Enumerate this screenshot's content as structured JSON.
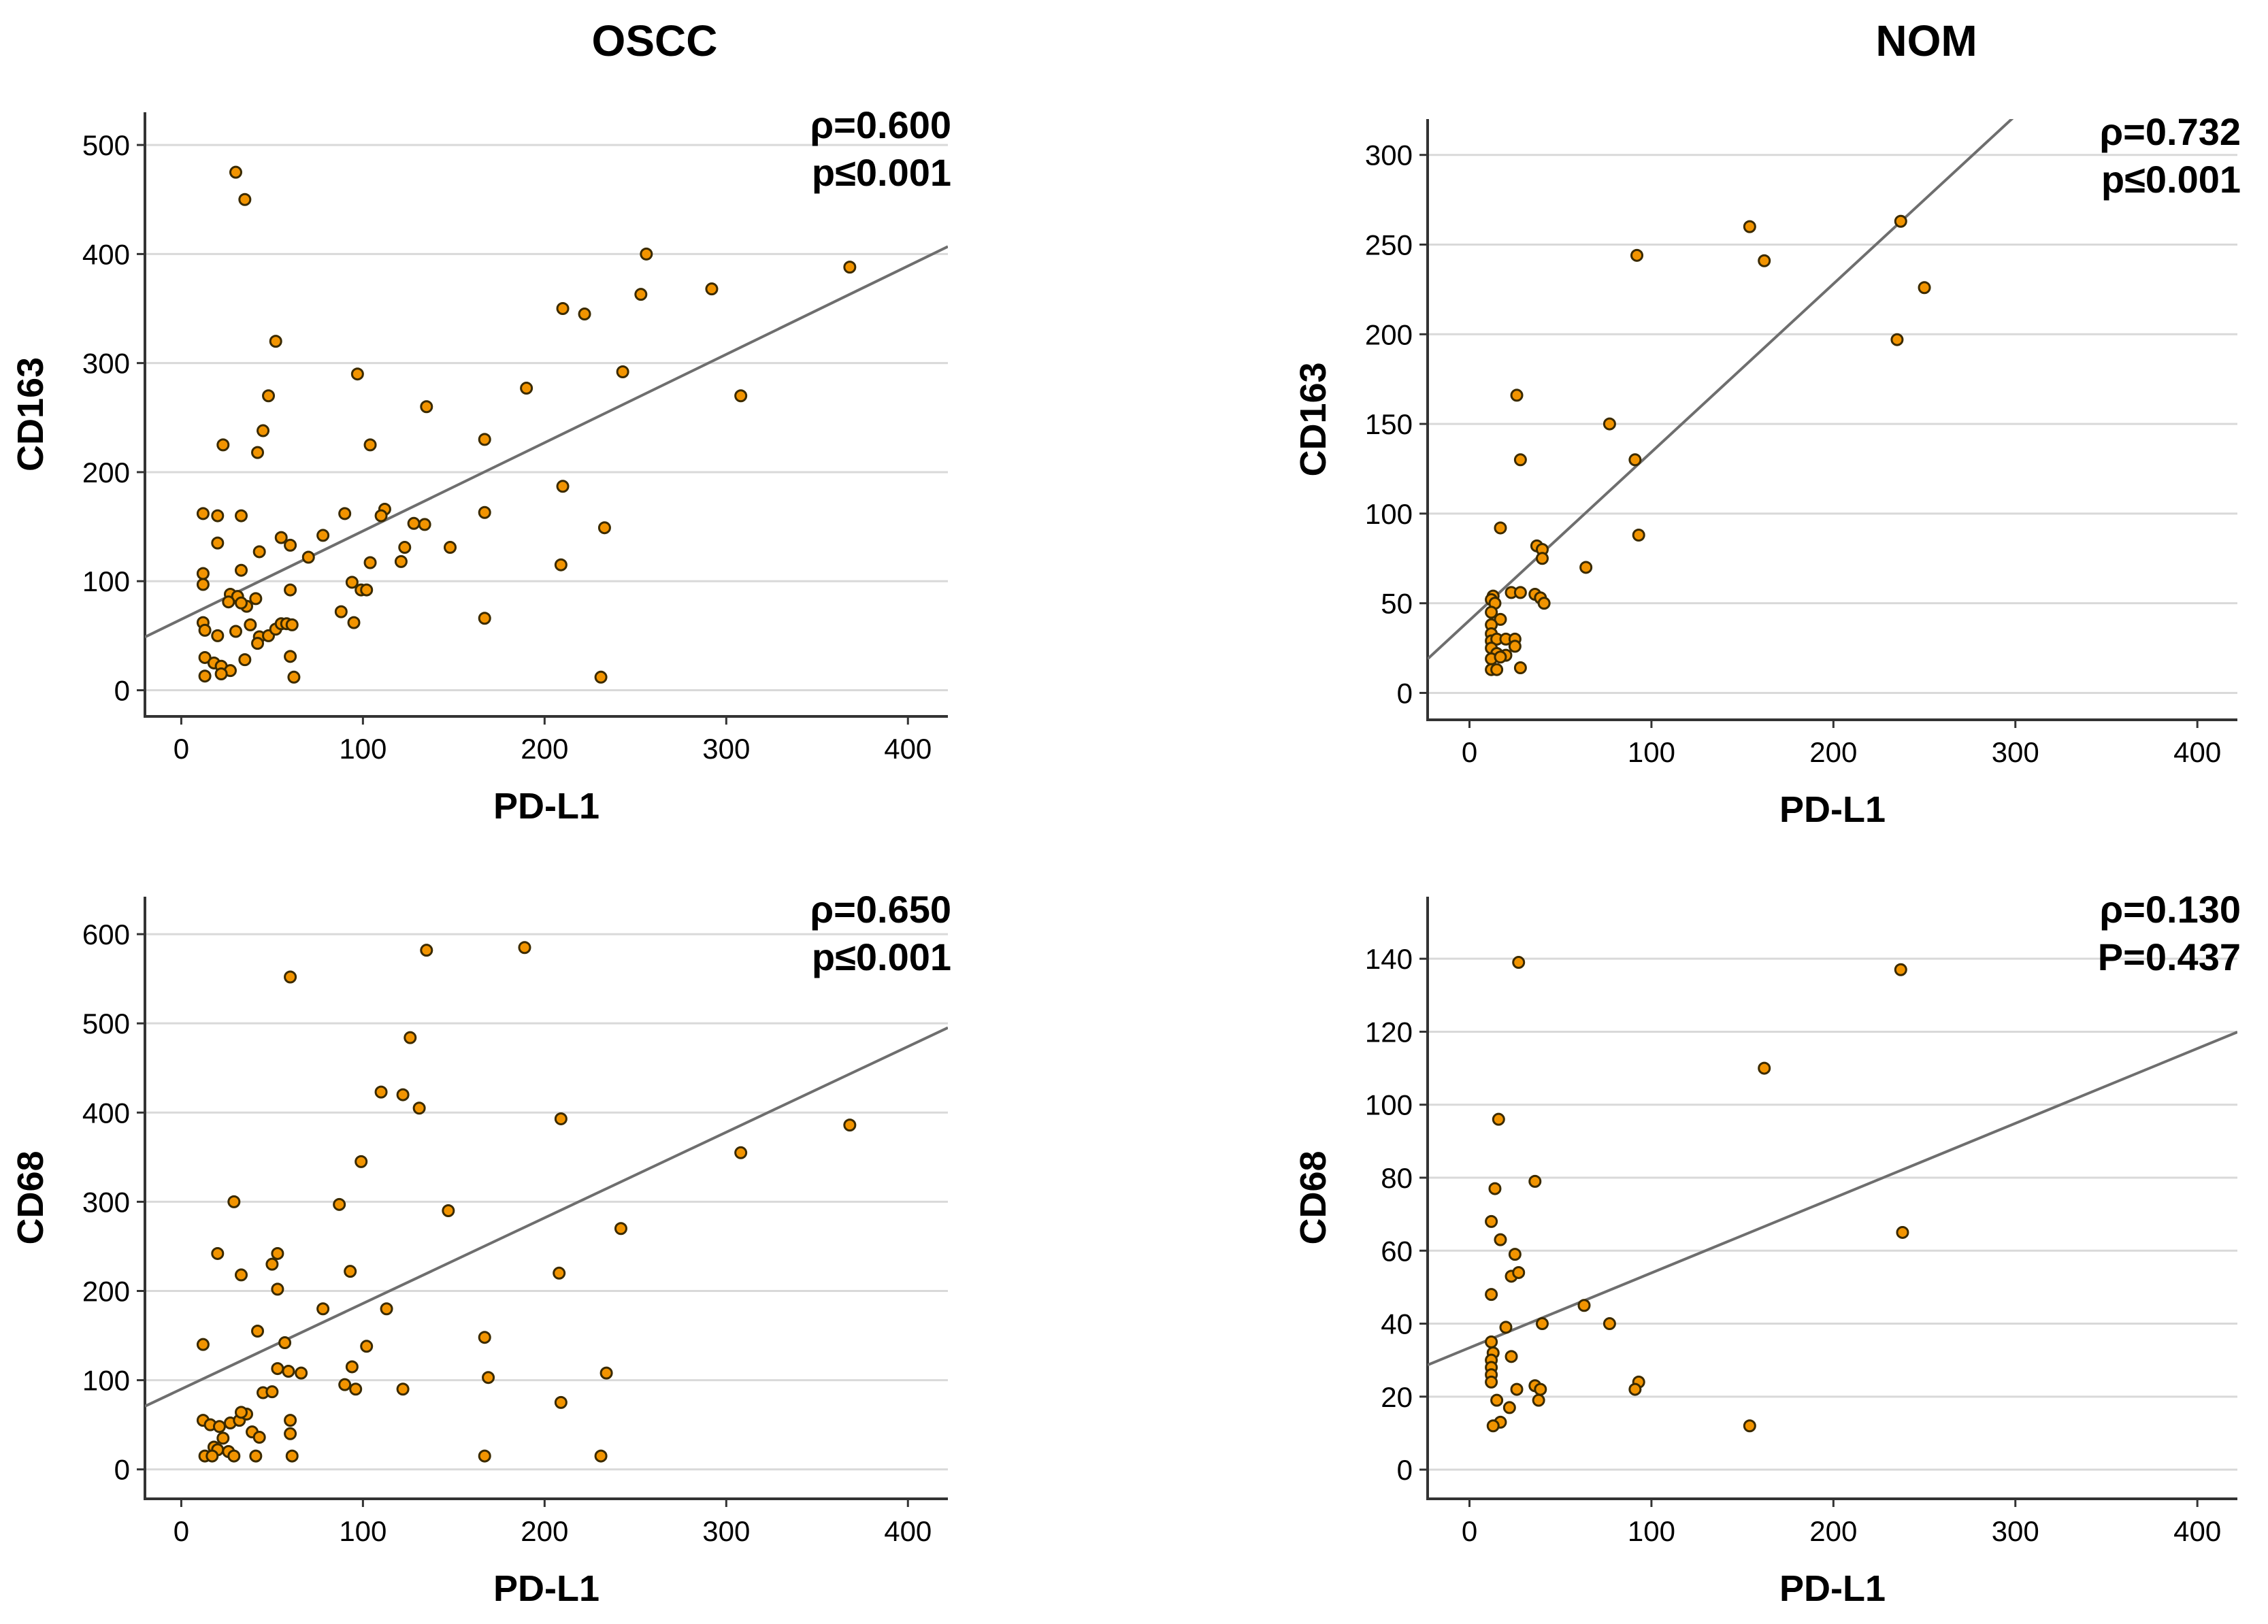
{
  "column_titles": {
    "left": "OSCC",
    "right": "NOM"
  },
  "colors": {
    "point_fill": "#f29400",
    "point_stroke": "#3a2a00",
    "fit_line": "#6e6e6e",
    "grid": "#d9d9d9"
  },
  "chart_data": [
    {
      "type": "scatter",
      "column": "OSCC",
      "xlabel": "PD-L1",
      "ylabel": "CD163",
      "xlim": [
        -20,
        422
      ],
      "ylim": [
        -24,
        530
      ],
      "xticks": [
        0,
        100,
        200,
        300,
        400
      ],
      "yticks": [
        0,
        100,
        200,
        300,
        400,
        500
      ],
      "grid": true,
      "annotation": [
        "ρ=0.600",
        "p≤0.001"
      ],
      "fit_line": {
        "intercept": 65,
        "slope": 0.81
      },
      "points": [
        [
          30,
          475
        ],
        [
          35,
          450
        ],
        [
          256,
          400
        ],
        [
          368,
          388
        ],
        [
          210,
          350
        ],
        [
          222,
          345
        ],
        [
          253,
          363
        ],
        [
          292,
          368
        ],
        [
          52,
          320
        ],
        [
          48,
          270
        ],
        [
          97,
          290
        ],
        [
          308,
          270
        ],
        [
          135,
          260
        ],
        [
          190,
          277
        ],
        [
          243,
          292
        ],
        [
          45,
          238
        ],
        [
          23,
          225
        ],
        [
          104,
          225
        ],
        [
          42,
          218
        ],
        [
          167,
          230
        ],
        [
          12,
          162
        ],
        [
          20,
          160
        ],
        [
          33,
          160
        ],
        [
          90,
          162
        ],
        [
          112,
          166
        ],
        [
          110,
          160
        ],
        [
          167,
          163
        ],
        [
          210,
          187
        ],
        [
          128,
          153
        ],
        [
          134,
          152
        ],
        [
          55,
          140
        ],
        [
          60,
          133
        ],
        [
          78,
          142
        ],
        [
          20,
          135
        ],
        [
          43,
          127
        ],
        [
          70,
          122
        ],
        [
          104,
          117
        ],
        [
          121,
          118
        ],
        [
          123,
          131
        ],
        [
          148,
          131
        ],
        [
          33,
          110
        ],
        [
          12,
          107
        ],
        [
          12,
          97
        ],
        [
          27,
          88
        ],
        [
          31,
          86
        ],
        [
          41,
          84
        ],
        [
          26,
          81
        ],
        [
          36,
          77
        ],
        [
          33,
          80
        ],
        [
          94,
          99
        ],
        [
          99,
          92
        ],
        [
          102,
          92
        ],
        [
          60,
          92
        ],
        [
          209,
          115
        ],
        [
          233,
          149
        ],
        [
          12,
          62
        ],
        [
          13,
          55
        ],
        [
          20,
          50
        ],
        [
          30,
          54
        ],
        [
          38,
          60
        ],
        [
          43,
          49
        ],
        [
          42,
          43
        ],
        [
          48,
          50
        ],
        [
          52,
          56
        ],
        [
          55,
          61
        ],
        [
          58,
          61
        ],
        [
          61,
          60
        ],
        [
          13,
          30
        ],
        [
          18,
          25
        ],
        [
          22,
          22
        ],
        [
          27,
          18
        ],
        [
          35,
          28
        ],
        [
          60,
          31
        ],
        [
          13,
          13
        ],
        [
          22,
          15
        ],
        [
          62,
          12
        ],
        [
          88,
          72
        ],
        [
          95,
          62
        ],
        [
          167,
          66
        ],
        [
          231,
          12
        ]
      ]
    },
    {
      "type": "scatter",
      "column": "NOM",
      "xlabel": "PD-L1",
      "ylabel": "CD163",
      "xlim": [
        -23,
        422
      ],
      "ylim": [
        -15,
        320
      ],
      "xticks": [
        0,
        100,
        200,
        300,
        400
      ],
      "yticks": [
        0,
        50,
        100,
        150,
        200,
        250,
        300
      ],
      "grid": true,
      "annotation": [
        "ρ=0.732",
        "p≤0.001"
      ],
      "fit_line": {
        "intercept": 40.5,
        "slope": 0.938
      },
      "points": [
        [
          154,
          260
        ],
        [
          237,
          263
        ],
        [
          92,
          244
        ],
        [
          162,
          241
        ],
        [
          250,
          226
        ],
        [
          235,
          197
        ],
        [
          26,
          166
        ],
        [
          77,
          150
        ],
        [
          28,
          130
        ],
        [
          91,
          130
        ],
        [
          17,
          92
        ],
        [
          93,
          88
        ],
        [
          37,
          82
        ],
        [
          40,
          80
        ],
        [
          40,
          75
        ],
        [
          64,
          70
        ],
        [
          23,
          56
        ],
        [
          28,
          56
        ],
        [
          13,
          54
        ],
        [
          12,
          52
        ],
        [
          14,
          50
        ],
        [
          36,
          55
        ],
        [
          39,
          53
        ],
        [
          41,
          50
        ],
        [
          12,
          45
        ],
        [
          17,
          41
        ],
        [
          12,
          38
        ],
        [
          12,
          33
        ],
        [
          12,
          29
        ],
        [
          15,
          30
        ],
        [
          20,
          30
        ],
        [
          25,
          30
        ],
        [
          12,
          25
        ],
        [
          15,
          22
        ],
        [
          20,
          21
        ],
        [
          25,
          26
        ],
        [
          12,
          19
        ],
        [
          17,
          20
        ],
        [
          12,
          13
        ],
        [
          15,
          13
        ],
        [
          28,
          14
        ]
      ]
    },
    {
      "type": "scatter",
      "column": "OSCC",
      "xlabel": "PD-L1",
      "ylabel": "CD68",
      "xlim": [
        -20,
        422
      ],
      "ylim": [
        -33,
        642
      ],
      "xticks": [
        0,
        100,
        200,
        300,
        400
      ],
      "yticks": [
        0,
        100,
        200,
        300,
        400,
        500,
        600
      ],
      "grid": true,
      "annotation": [
        "ρ=0.650",
        "p≤0.001"
      ],
      "fit_line": {
        "intercept": 90,
        "slope": 0.96
      },
      "points": [
        [
          135,
          582
        ],
        [
          189,
          585
        ],
        [
          60,
          552
        ],
        [
          126,
          484
        ],
        [
          110,
          423
        ],
        [
          122,
          420
        ],
        [
          131,
          405
        ],
        [
          209,
          393
        ],
        [
          368,
          386
        ],
        [
          308,
          355
        ],
        [
          99,
          345
        ],
        [
          29,
          300
        ],
        [
          87,
          297
        ],
        [
          147,
          290
        ],
        [
          242,
          270
        ],
        [
          20,
          242
        ],
        [
          53,
          242
        ],
        [
          93,
          222
        ],
        [
          33,
          218
        ],
        [
          208,
          220
        ],
        [
          50,
          230
        ],
        [
          53,
          202
        ],
        [
          78,
          180
        ],
        [
          113,
          180
        ],
        [
          42,
          155
        ],
        [
          12,
          140
        ],
        [
          57,
          142
        ],
        [
          102,
          138
        ],
        [
          167,
          148
        ],
        [
          94,
          115
        ],
        [
          66,
          108
        ],
        [
          53,
          113
        ],
        [
          59,
          110
        ],
        [
          90,
          95
        ],
        [
          96,
          90
        ],
        [
          122,
          90
        ],
        [
          169,
          103
        ],
        [
          234,
          108
        ],
        [
          209,
          75
        ],
        [
          45,
          86
        ],
        [
          50,
          87
        ],
        [
          12,
          55
        ],
        [
          16,
          50
        ],
        [
          21,
          48
        ],
        [
          27,
          52
        ],
        [
          32,
          55
        ],
        [
          36,
          62
        ],
        [
          33,
          64
        ],
        [
          39,
          42
        ],
        [
          43,
          36
        ],
        [
          23,
          35
        ],
        [
          18,
          25
        ],
        [
          20,
          22
        ],
        [
          26,
          20
        ],
        [
          13,
          15
        ],
        [
          17,
          15
        ],
        [
          29,
          15
        ],
        [
          41,
          15
        ],
        [
          60,
          40
        ],
        [
          60,
          55
        ],
        [
          61,
          15
        ],
        [
          167,
          15
        ],
        [
          231,
          15
        ]
      ]
    },
    {
      "type": "scatter",
      "column": "NOM",
      "xlabel": "PD-L1",
      "ylabel": "CD68",
      "xlim": [
        -23,
        422
      ],
      "ylim": [
        -8,
        157
      ],
      "xticks": [
        0,
        100,
        200,
        300,
        400
      ],
      "yticks": [
        0,
        20,
        40,
        60,
        80,
        100,
        120,
        140
      ],
      "grid": true,
      "annotation": [
        "ρ=0.130",
        "P=0.437"
      ],
      "fit_line": {
        "intercept": 33.4,
        "slope": 0.205
      },
      "points": [
        [
          27,
          139
        ],
        [
          237,
          137
        ],
        [
          162,
          110
        ],
        [
          16,
          96
        ],
        [
          36,
          79
        ],
        [
          14,
          77
        ],
        [
          12,
          68
        ],
        [
          17,
          63
        ],
        [
          25,
          59
        ],
        [
          23,
          53
        ],
        [
          27,
          54
        ],
        [
          12,
          48
        ],
        [
          63,
          45
        ],
        [
          77,
          40
        ],
        [
          40,
          40
        ],
        [
          20,
          39
        ],
        [
          12,
          35
        ],
        [
          13,
          32
        ],
        [
          12,
          30
        ],
        [
          23,
          31
        ],
        [
          12,
          28
        ],
        [
          12,
          26
        ],
        [
          12,
          24
        ],
        [
          36,
          23
        ],
        [
          39,
          22
        ],
        [
          93,
          24
        ],
        [
          91,
          22
        ],
        [
          26,
          22
        ],
        [
          15,
          19
        ],
        [
          38,
          19
        ],
        [
          22,
          17
        ],
        [
          17,
          13
        ],
        [
          13,
          12
        ],
        [
          154,
          12
        ],
        [
          238,
          65
        ]
      ]
    }
  ]
}
